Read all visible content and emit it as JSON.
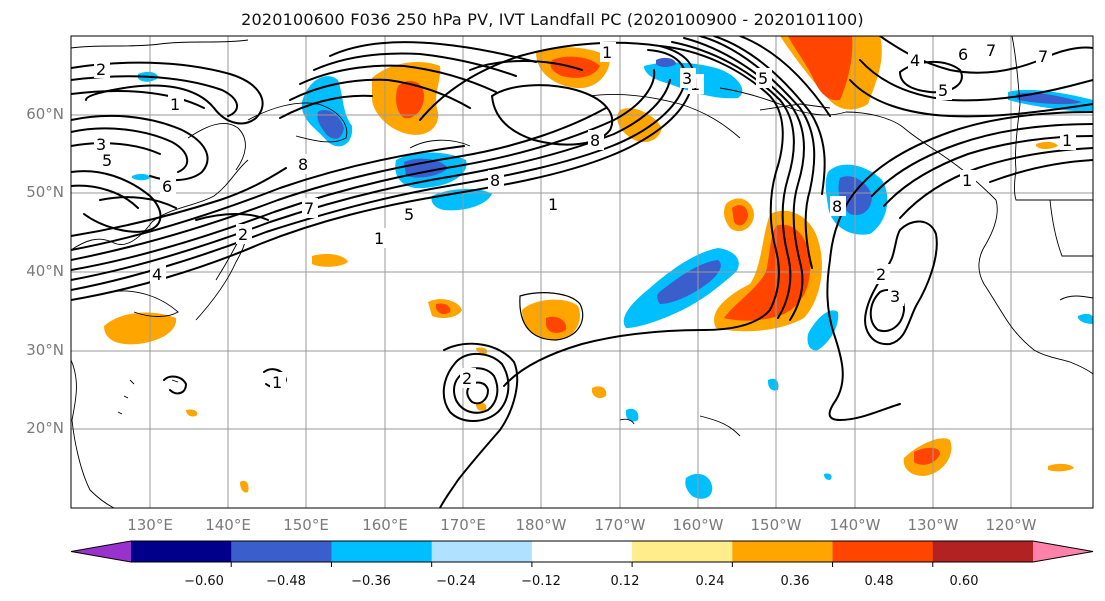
{
  "title": "2020100600 F036 250 hPa PV, IVT Landfall PC (2020100900 - 2020101100)",
  "lat_labels": [
    "60°N",
    "50°N",
    "40°N",
    "30°N",
    "20°N"
  ],
  "lon_labels": [
    "130°E",
    "140°E",
    "150°E",
    "160°E",
    "170°E",
    "180°W",
    "170°W",
    "160°W",
    "150°W",
    "140°W",
    "130°W",
    "120°W"
  ],
  "colorbar": {
    "ticks": [
      "−0.60",
      "−0.48",
      "−0.36",
      "−0.24",
      "−0.12",
      "0.12",
      "0.24",
      "0.36",
      "0.48",
      "0.60"
    ],
    "colors": [
      "#9932cc",
      "#00008b",
      "#3a5fcd",
      "#00bfff",
      "#b0e2ff",
      "#ffffff",
      "#ffec8b",
      "#ffa500",
      "#ff4500",
      "#b22222",
      "#ff82ab"
    ]
  },
  "contour_labels": [
    "2",
    "1",
    "3",
    "5",
    "6",
    "8",
    "7",
    "1",
    "5",
    "1",
    "8",
    "8",
    "1",
    "5",
    "4",
    "6",
    "7",
    "5",
    "3",
    "2",
    "1",
    "7",
    "1",
    "2",
    "3",
    "8",
    "4",
    "1",
    "2",
    "1"
  ]
}
